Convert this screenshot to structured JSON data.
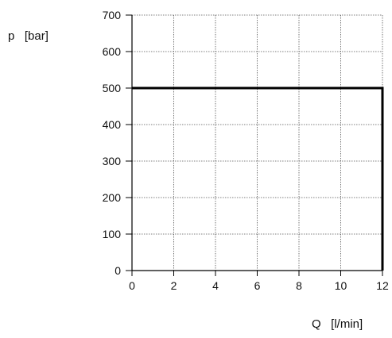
{
  "chart_data": {
    "type": "line",
    "xlabel": "Q   [l/min]",
    "ylabel": "p   [bar]",
    "xlim": [
      0,
      12
    ],
    "ylim": [
      0,
      700
    ],
    "xticks": [
      0,
      2,
      4,
      6,
      8,
      10,
      12
    ],
    "yticks": [
      0,
      100,
      200,
      300,
      400,
      500,
      600,
      700
    ],
    "grid": true,
    "series": [
      {
        "x": [
          0,
          12,
          12
        ],
        "y": [
          500,
          500,
          0
        ]
      }
    ]
  },
  "colors": {
    "line": "#000000",
    "grid": "#555555",
    "axis": "#000000"
  }
}
